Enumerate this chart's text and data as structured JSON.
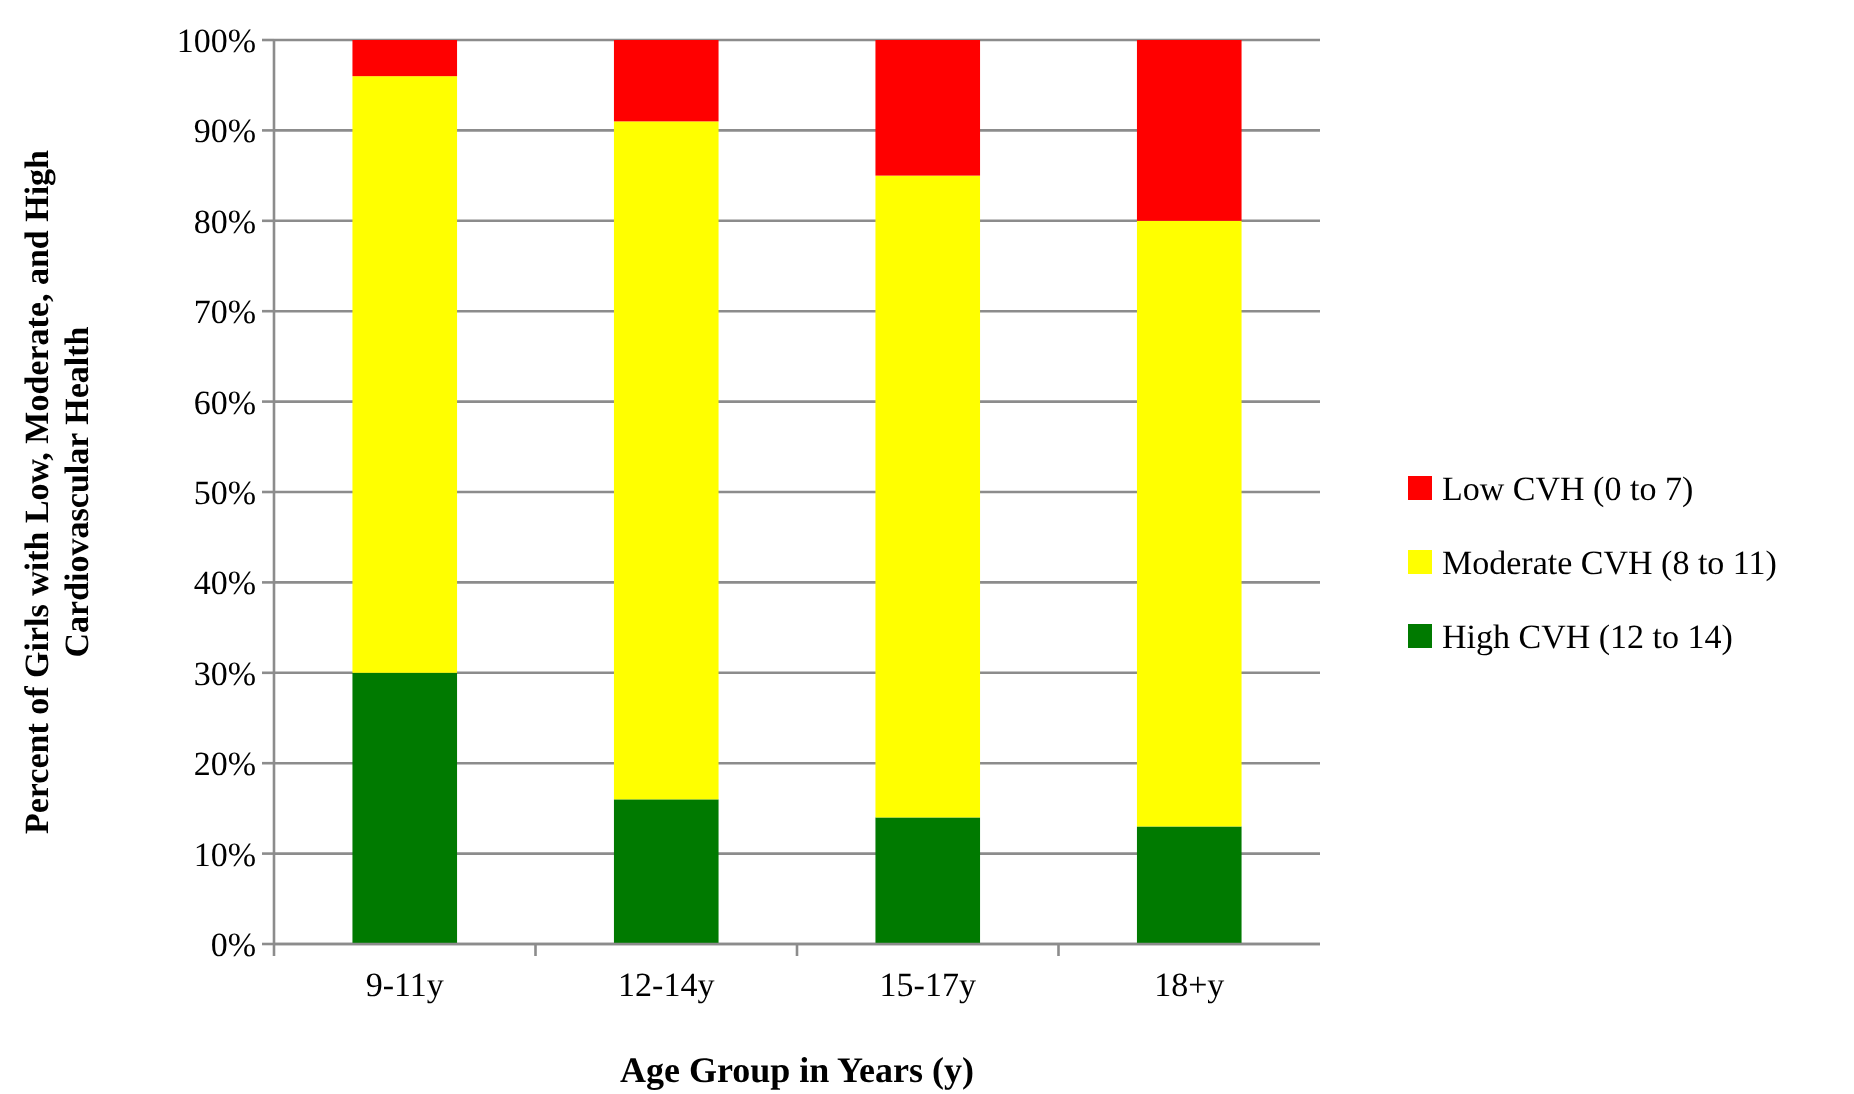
{
  "chart_data": {
    "type": "bar",
    "stacked": true,
    "xlabel": "Age Group in Years (y)",
    "ylabel": "Percent of Girls with Low, Moderate, and High\nCardiovascular Health",
    "categories": [
      "9-11y",
      "12-14y",
      "15-17y",
      "18+y"
    ],
    "series": [
      {
        "name": "High CVH (12 to 14)",
        "color": "#007a00",
        "values": [
          30,
          16,
          14,
          13
        ]
      },
      {
        "name": "Moderate CVH (8 to 11)",
        "color": "#ffff00",
        "values": [
          66,
          75,
          71,
          67
        ]
      },
      {
        "name": "Low CVH (0 to 7)",
        "color": "#ff0000",
        "values": [
          4,
          9,
          15,
          20
        ]
      }
    ],
    "ylim": [
      0,
      100
    ],
    "yticks": [
      {
        "value": 0,
        "label": "0%"
      },
      {
        "value": 10,
        "label": "10%"
      },
      {
        "value": 20,
        "label": "20%"
      },
      {
        "value": 30,
        "label": "30%"
      },
      {
        "value": 40,
        "label": "40%"
      },
      {
        "value": 50,
        "label": "50%"
      },
      {
        "value": 60,
        "label": "60%"
      },
      {
        "value": 70,
        "label": "70%"
      },
      {
        "value": 80,
        "label": "80%"
      },
      {
        "value": 90,
        "label": "90%"
      },
      {
        "value": 100,
        "label": "100%"
      }
    ],
    "grid": "y",
    "legend": "right"
  }
}
